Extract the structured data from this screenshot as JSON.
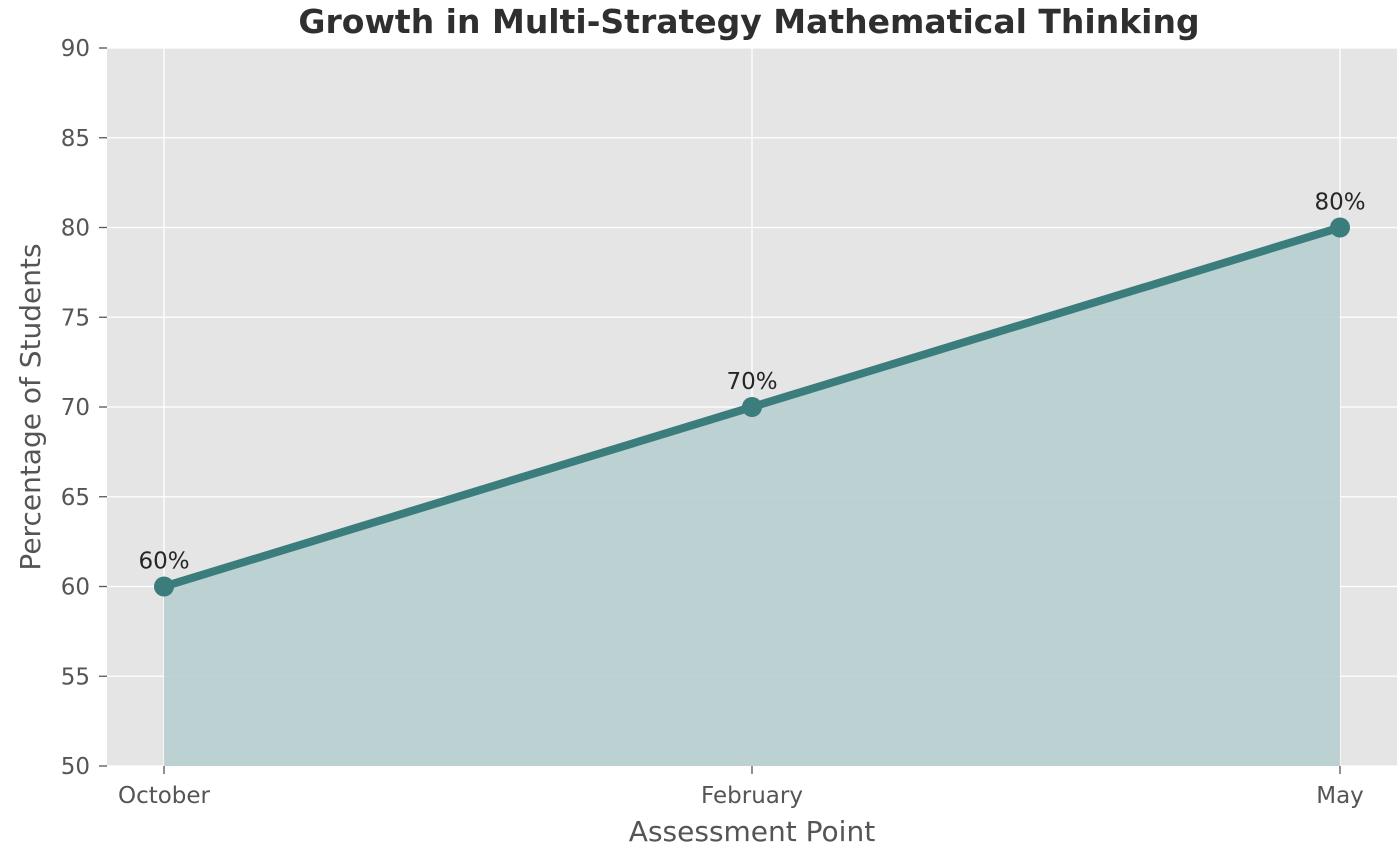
{
  "chart_data": {
    "type": "area",
    "title": "Growth in Multi-Strategy Mathematical Thinking",
    "xlabel": "Assessment Point",
    "ylabel": "Percentage of Students",
    "categories": [
      "October",
      "February",
      "May"
    ],
    "series": [
      {
        "values": [
          60,
          70,
          80
        ],
        "data_labels": [
          "60%",
          "70%",
          "80%"
        ]
      }
    ],
    "ylim": [
      50,
      90
    ],
    "yticks": [
      50,
      55,
      60,
      65,
      70,
      75,
      80,
      85,
      90
    ],
    "ytick_labels": [
      "50",
      "55",
      "60",
      "65",
      "70",
      "75",
      "80",
      "85",
      "90"
    ],
    "grid": true,
    "colors": {
      "line": "#3a7d7c",
      "fill": "#b8cfd0",
      "plot_background": "#e5e5e5",
      "grid": "#ffffff"
    }
  }
}
